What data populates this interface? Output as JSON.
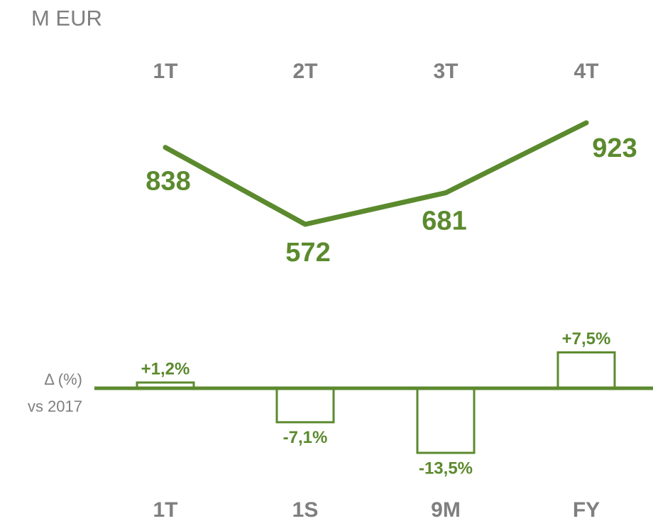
{
  "chart_data": [
    {
      "type": "line",
      "subtitle": "M EUR",
      "categories": [
        "1T",
        "2T",
        "3T",
        "4T"
      ],
      "values": [
        838,
        572,
        681,
        923
      ],
      "color": "#5b8a2e"
    },
    {
      "type": "bar",
      "ylabel": [
        "Δ (%)",
        "vs 2017"
      ],
      "categories": [
        "1T",
        "1S",
        "9M",
        "FY"
      ],
      "values": [
        1.2,
        -7.1,
        -13.5,
        7.5
      ],
      "value_labels": [
        "+1,2%",
        "-7,1%",
        "-13,5%",
        "+7,5%"
      ],
      "color": "#5b8a2e"
    }
  ]
}
